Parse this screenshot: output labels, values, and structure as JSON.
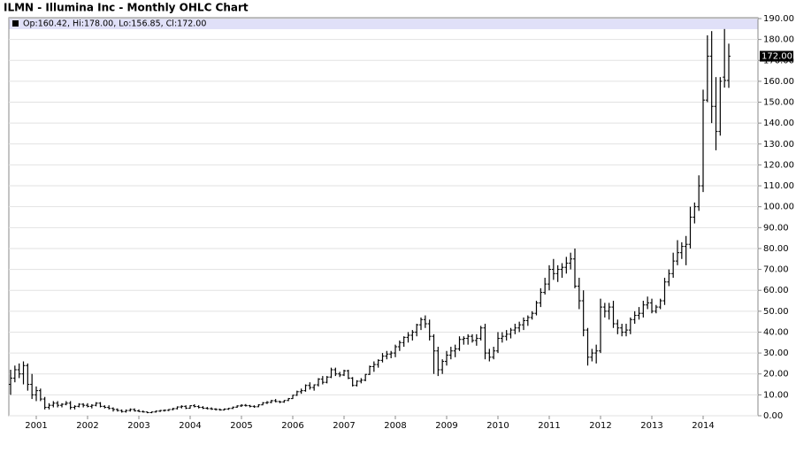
{
  "chart_data": {
    "type": "ohlc",
    "title": "ILMN - Illumina Inc - Monthly OHLC Chart",
    "legend_text": "Op:160.42, Hi:178.00, Lo:156.85, Cl:172.00",
    "color": "#000000",
    "grid": true,
    "current_price": {
      "value": 172,
      "label": "172.00"
    },
    "categories": [
      null,
      null,
      null,
      null,
      null,
      null,
      "2001",
      null,
      null,
      null,
      null,
      null,
      null,
      null,
      null,
      null,
      null,
      null,
      "2002",
      null,
      null,
      null,
      null,
      null,
      null,
      null,
      null,
      null,
      null,
      null,
      "2003",
      null,
      null,
      null,
      null,
      null,
      null,
      null,
      null,
      null,
      null,
      null,
      "2004",
      null,
      null,
      null,
      null,
      null,
      null,
      null,
      null,
      null,
      null,
      null,
      "2005",
      null,
      null,
      null,
      null,
      null,
      null,
      null,
      null,
      null,
      null,
      null,
      "2006",
      null,
      null,
      null,
      null,
      null,
      null,
      null,
      null,
      null,
      null,
      null,
      "2007",
      null,
      null,
      null,
      null,
      null,
      null,
      null,
      null,
      null,
      null,
      null,
      "2008",
      null,
      null,
      null,
      null,
      null,
      null,
      null,
      null,
      null,
      null,
      null,
      "2009",
      null,
      null,
      null,
      null,
      null,
      null,
      null,
      null,
      null,
      null,
      null,
      "2010",
      null,
      null,
      null,
      null,
      null,
      null,
      null,
      null,
      null,
      null,
      null,
      "2011",
      null,
      null,
      null,
      null,
      null,
      null,
      null,
      null,
      null,
      null,
      null,
      "2012",
      null,
      null,
      null,
      null,
      null,
      null,
      null,
      null,
      null,
      null,
      null,
      "2013",
      null,
      null,
      null,
      null,
      null,
      null,
      null,
      null,
      null,
      null,
      null,
      "2014",
      null,
      null,
      null,
      null,
      null,
      null
    ],
    "open": [
      15,
      18,
      22,
      20,
      24,
      15,
      10,
      12,
      8,
      4,
      5,
      6,
      5,
      5.5,
      6,
      4,
      4.5,
      5.5,
      5,
      4.5,
      5,
      6,
      4.5,
      4,
      3.5,
      3,
      2.5,
      2,
      2.5,
      3,
      2.3,
      2,
      1.8,
      1.5,
      1.8,
      2.2,
      2.5,
      2.6,
      3,
      3.4,
      4.2,
      4.5,
      3.6,
      4.8,
      4.4,
      4,
      3.6,
      3.4,
      3.2,
      3,
      2.8,
      3.2,
      3.5,
      4.1,
      4.7,
      5,
      4.8,
      4.5,
      4.3,
      5.2,
      6.2,
      6.4,
      7.2,
      6.8,
      6.6,
      7.3,
      8.2,
      9.8,
      11.5,
      12,
      14.5,
      13.5,
      14.8,
      17.5,
      16,
      18.5,
      22,
      20,
      19.5,
      21.5,
      18,
      14.5,
      16.5,
      17,
      19.8,
      23.5,
      24.5,
      26.5,
      28.5,
      29.5,
      30,
      33,
      35,
      37.5,
      38.5,
      40,
      43.5,
      46,
      44,
      38,
      31,
      22,
      26,
      29,
      31,
      32,
      36.5,
      37,
      38,
      36,
      37,
      42,
      30,
      28,
      31,
      37,
      38,
      39,
      41,
      42,
      43.5,
      45.5,
      47,
      49,
      54,
      59,
      63,
      70,
      68,
      70,
      71,
      73,
      75,
      62,
      55,
      41,
      28,
      30,
      31,
      52,
      50,
      52,
      44,
      42,
      40,
      41,
      46,
      48,
      49,
      53,
      54,
      50,
      52,
      55,
      64,
      68,
      74,
      78,
      81,
      82,
      95,
      100,
      110,
      151,
      172,
      148,
      136,
      162,
      160.42
    ],
    "high": [
      22,
      24,
      25,
      26,
      25,
      20,
      14,
      13,
      9,
      6,
      7,
      7,
      6,
      7,
      7,
      5,
      6,
      6,
      6,
      5.5,
      6.5,
      6.5,
      5,
      5,
      4,
      3.5,
      3,
      3,
      3.5,
      3.5,
      3,
      2.5,
      2,
      2,
      2.5,
      2.8,
      3,
      3.2,
      3.8,
      4.5,
      5,
      5,
      5,
      5.5,
      5,
      4.6,
      4.2,
      4,
      3.6,
      3.4,
      3.5,
      3.8,
      4.4,
      5,
      5.5,
      5.6,
      5.2,
      5,
      5.5,
      6.5,
      7,
      7.6,
      8,
      7.2,
      7.5,
      8.5,
      10,
      12,
      13,
      15,
      16,
      15,
      18,
      19,
      19,
      23,
      23,
      21,
      22,
      22,
      18.5,
      17,
      18,
      20,
      24,
      26,
      27,
      30,
      31,
      31,
      34,
      36,
      38,
      40,
      41,
      44,
      47,
      48,
      46,
      39,
      33,
      27,
      31,
      33,
      34,
      38,
      38,
      39,
      39,
      39,
      43,
      44,
      32,
      33,
      40,
      40,
      41,
      42,
      44,
      45,
      47,
      48,
      50,
      55,
      61,
      66,
      72,
      75,
      72,
      73,
      76,
      78,
      80,
      66,
      60,
      42,
      32,
      34,
      56,
      54,
      54,
      55,
      46,
      44,
      44,
      47,
      50,
      52,
      55,
      57,
      56,
      53,
      56,
      66,
      70,
      78,
      84,
      83,
      86,
      100,
      102,
      115,
      156,
      182,
      184,
      162,
      162,
      185,
      178
    ],
    "low": [
      10,
      16,
      18,
      15,
      12,
      8,
      7,
      7,
      3,
      3,
      4,
      4,
      4,
      5,
      3,
      3,
      4,
      4,
      4,
      3.5,
      4.5,
      4,
      3.5,
      3,
      2,
      2,
      1.5,
      1.5,
      2,
      2,
      1.8,
      1.5,
      1.2,
      1.2,
      1.5,
      1.8,
      2,
      2.2,
      2.6,
      3,
      3.5,
      3.2,
      3.4,
      4,
      3.5,
      3.2,
      3,
      2.8,
      2.5,
      2.4,
      2.5,
      2.8,
      3.2,
      3.8,
      4.2,
      4.4,
      4,
      3.8,
      4.1,
      5,
      5.6,
      6,
      6.4,
      6,
      6.2,
      7,
      8,
      9.5,
      10.5,
      11.5,
      12.5,
      12,
      14,
      15,
      15.5,
      18,
      19,
      18.5,
      19,
      17.5,
      14,
      14,
      15.5,
      16.5,
      19.5,
      21,
      23,
      25.5,
      27,
      27.5,
      28,
      31,
      33,
      35,
      36,
      38,
      41,
      42,
      36,
      20,
      19,
      20,
      24,
      27,
      28,
      31,
      34,
      34,
      35,
      33.5,
      36,
      27,
      26,
      27,
      30,
      35,
      36,
      37,
      39,
      40,
      41,
      43,
      46,
      48,
      52,
      58,
      60,
      65,
      64,
      66,
      68,
      70,
      61,
      51,
      38,
      24,
      26,
      25,
      30,
      47,
      46,
      42,
      39,
      38,
      38,
      39,
      44,
      46,
      47,
      51,
      49,
      49,
      51,
      53,
      62,
      66,
      72,
      75,
      72,
      80,
      92,
      98,
      107,
      150,
      140,
      127,
      134,
      157,
      156.85
    ],
    "close": [
      18,
      22,
      20,
      24,
      15,
      10,
      12,
      8,
      4,
      5,
      6,
      5,
      5.5,
      6,
      4,
      4.5,
      5.5,
      5,
      4.5,
      5,
      6,
      4.5,
      4,
      3.5,
      3,
      2.5,
      2,
      2.5,
      3,
      2.3,
      2,
      1.8,
      1.5,
      1.8,
      2.2,
      2.5,
      2.6,
      3,
      3.4,
      4.2,
      4.5,
      3.6,
      4.8,
      4.4,
      4,
      3.6,
      3.4,
      3.2,
      3,
      2.8,
      3.2,
      3.5,
      4.1,
      4.7,
      5,
      4.8,
      4.5,
      4.3,
      5.2,
      6.2,
      6.4,
      7.2,
      6.8,
      6.6,
      7.3,
      8.2,
      9.8,
      11.5,
      12,
      14.5,
      13.5,
      14.8,
      17.5,
      16,
      18.5,
      22,
      20,
      19.5,
      21.5,
      18,
      14.5,
      16.5,
      17,
      19.8,
      23.5,
      24.5,
      26.5,
      28.5,
      29.5,
      30,
      33,
      35,
      37.5,
      38.5,
      40,
      43.5,
      46,
      44,
      38,
      31,
      22,
      26,
      29,
      31,
      32,
      36.5,
      37,
      38,
      36,
      37,
      42,
      30,
      28,
      31,
      37,
      38,
      39,
      41,
      42,
      43.5,
      45.5,
      47,
      49,
      54,
      59,
      63,
      70,
      68,
      70,
      71,
      73,
      75,
      62,
      55,
      41,
      28,
      30,
      31,
      52,
      50,
      52,
      44,
      42,
      40,
      41,
      46,
      48,
      49,
      53,
      54,
      50,
      52,
      55,
      64,
      68,
      74,
      78,
      81,
      82,
      95,
      100,
      110,
      151,
      172,
      148,
      136,
      160,
      160.42,
      172
    ],
    "ylim": [
      0,
      190
    ],
    "yticks": [
      {
        "value": 0,
        "label": "0.00"
      },
      {
        "value": 10,
        "label": "10.00"
      },
      {
        "value": 20,
        "label": "20.00"
      },
      {
        "value": 30,
        "label": "30.00"
      },
      {
        "value": 40,
        "label": "40.00"
      },
      {
        "value": 50,
        "label": "50.00"
      },
      {
        "value": 60,
        "label": "60.00"
      },
      {
        "value": 70,
        "label": "70.00"
      },
      {
        "value": 80,
        "label": "80.00"
      },
      {
        "value": 90,
        "label": "90.00"
      },
      {
        "value": 100,
        "label": "100.00"
      },
      {
        "value": 110,
        "label": "110.00"
      },
      {
        "value": 120,
        "label": "120.00"
      },
      {
        "value": 130,
        "label": "130.00"
      },
      {
        "value": 140,
        "label": "140.00"
      },
      {
        "value": 150,
        "label": "150.00"
      },
      {
        "value": 160,
        "label": "160.00"
      },
      {
        "value": 170,
        "label": "170.00"
      },
      {
        "value": 180,
        "label": "180.00"
      },
      {
        "value": 190,
        "label": "190.00"
      }
    ]
  }
}
